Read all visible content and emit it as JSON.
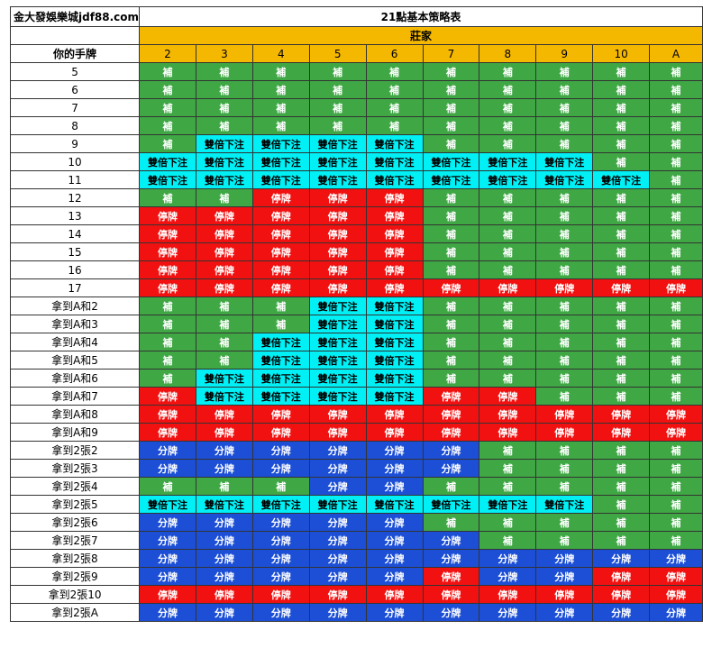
{
  "header": {
    "site": "金大發娛樂城jdf88.com",
    "title": "21點基本策略表",
    "dealer_label": "莊家",
    "your_hand_label": "你的手牌"
  },
  "dealer_cards": [
    "2",
    "3",
    "4",
    "5",
    "6",
    "7",
    "8",
    "9",
    "10",
    "A"
  ],
  "actions": {
    "H": "補",
    "D": "雙倍下注",
    "S": "停牌",
    "P": "分牌"
  },
  "action_colors": {
    "H": "#3fa845",
    "D": "#00f0f5",
    "S": "#f21111",
    "P": "#1c4fd6",
    "dealer_header": "#f5b800"
  },
  "rows": [
    {
      "hand": "5",
      "cells": [
        "H",
        "H",
        "H",
        "H",
        "H",
        "H",
        "H",
        "H",
        "H",
        "H"
      ]
    },
    {
      "hand": "6",
      "cells": [
        "H",
        "H",
        "H",
        "H",
        "H",
        "H",
        "H",
        "H",
        "H",
        "H"
      ]
    },
    {
      "hand": "7",
      "cells": [
        "H",
        "H",
        "H",
        "H",
        "H",
        "H",
        "H",
        "H",
        "H",
        "H"
      ]
    },
    {
      "hand": "8",
      "cells": [
        "H",
        "H",
        "H",
        "H",
        "H",
        "H",
        "H",
        "H",
        "H",
        "H"
      ]
    },
    {
      "hand": "9",
      "cells": [
        "H",
        "D",
        "D",
        "D",
        "D",
        "H",
        "H",
        "H",
        "H",
        "H"
      ]
    },
    {
      "hand": "10",
      "cells": [
        "D",
        "D",
        "D",
        "D",
        "D",
        "D",
        "D",
        "D",
        "H",
        "H"
      ]
    },
    {
      "hand": "11",
      "cells": [
        "D",
        "D",
        "D",
        "D",
        "D",
        "D",
        "D",
        "D",
        "D",
        "H"
      ]
    },
    {
      "hand": "12",
      "cells": [
        "H",
        "H",
        "S",
        "S",
        "S",
        "H",
        "H",
        "H",
        "H",
        "H"
      ]
    },
    {
      "hand": "13",
      "cells": [
        "S",
        "S",
        "S",
        "S",
        "S",
        "H",
        "H",
        "H",
        "H",
        "H"
      ]
    },
    {
      "hand": "14",
      "cells": [
        "S",
        "S",
        "S",
        "S",
        "S",
        "H",
        "H",
        "H",
        "H",
        "H"
      ]
    },
    {
      "hand": "15",
      "cells": [
        "S",
        "S",
        "S",
        "S",
        "S",
        "H",
        "H",
        "H",
        "H",
        "H"
      ]
    },
    {
      "hand": "16",
      "cells": [
        "S",
        "S",
        "S",
        "S",
        "S",
        "H",
        "H",
        "H",
        "H",
        "H"
      ]
    },
    {
      "hand": "17",
      "cells": [
        "S",
        "S",
        "S",
        "S",
        "S",
        "S",
        "S",
        "S",
        "S",
        "S"
      ]
    },
    {
      "hand": "拿到A和2",
      "cells": [
        "H",
        "H",
        "H",
        "D",
        "D",
        "H",
        "H",
        "H",
        "H",
        "H"
      ]
    },
    {
      "hand": "拿到A和3",
      "cells": [
        "H",
        "H",
        "H",
        "D",
        "D",
        "H",
        "H",
        "H",
        "H",
        "H"
      ]
    },
    {
      "hand": "拿到A和4",
      "cells": [
        "H",
        "H",
        "D",
        "D",
        "D",
        "H",
        "H",
        "H",
        "H",
        "H"
      ]
    },
    {
      "hand": "拿到A和5",
      "cells": [
        "H",
        "H",
        "D",
        "D",
        "D",
        "H",
        "H",
        "H",
        "H",
        "H"
      ]
    },
    {
      "hand": "拿到A和6",
      "cells": [
        "H",
        "D",
        "D",
        "D",
        "D",
        "H",
        "H",
        "H",
        "H",
        "H"
      ]
    },
    {
      "hand": "拿到A和7",
      "cells": [
        "S",
        "D",
        "D",
        "D",
        "D",
        "S",
        "S",
        "H",
        "H",
        "H"
      ]
    },
    {
      "hand": "拿到A和8",
      "cells": [
        "S",
        "S",
        "S",
        "S",
        "S",
        "S",
        "S",
        "S",
        "S",
        "S"
      ]
    },
    {
      "hand": "拿到A和9",
      "cells": [
        "S",
        "S",
        "S",
        "S",
        "S",
        "S",
        "S",
        "S",
        "S",
        "S"
      ]
    },
    {
      "hand": "拿到2張2",
      "cells": [
        "P",
        "P",
        "P",
        "P",
        "P",
        "P",
        "H",
        "H",
        "H",
        "H"
      ]
    },
    {
      "hand": "拿到2張3",
      "cells": [
        "P",
        "P",
        "P",
        "P",
        "P",
        "P",
        "H",
        "H",
        "H",
        "H"
      ]
    },
    {
      "hand": "拿到2張4",
      "cells": [
        "H",
        "H",
        "H",
        "P",
        "P",
        "H",
        "H",
        "H",
        "H",
        "H"
      ]
    },
    {
      "hand": "拿到2張5",
      "cells": [
        "D",
        "D",
        "D",
        "D",
        "D",
        "D",
        "D",
        "D",
        "H",
        "H"
      ]
    },
    {
      "hand": "拿到2張6",
      "cells": [
        "P",
        "P",
        "P",
        "P",
        "P",
        "H",
        "H",
        "H",
        "H",
        "H"
      ]
    },
    {
      "hand": "拿到2張7",
      "cells": [
        "P",
        "P",
        "P",
        "P",
        "P",
        "P",
        "H",
        "H",
        "H",
        "H"
      ]
    },
    {
      "hand": "拿到2張8",
      "cells": [
        "P",
        "P",
        "P",
        "P",
        "P",
        "P",
        "P",
        "P",
        "P",
        "P"
      ]
    },
    {
      "hand": "拿到2張9",
      "cells": [
        "P",
        "P",
        "P",
        "P",
        "P",
        "S",
        "P",
        "P",
        "S",
        "S"
      ]
    },
    {
      "hand": "拿到2張10",
      "cells": [
        "S",
        "S",
        "S",
        "S",
        "S",
        "S",
        "S",
        "S",
        "S",
        "S"
      ]
    },
    {
      "hand": "拿到2張A",
      "cells": [
        "P",
        "P",
        "P",
        "P",
        "P",
        "P",
        "P",
        "P",
        "P",
        "P"
      ]
    }
  ]
}
